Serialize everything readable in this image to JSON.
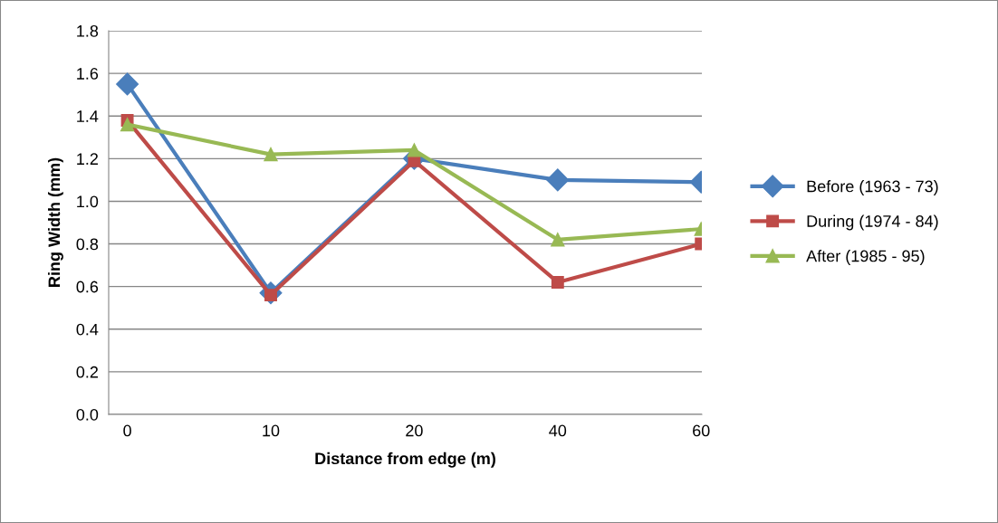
{
  "chart_data": {
    "type": "line",
    "xlabel": "Distance from edge (m)",
    "ylabel": "Ring Width (mm)",
    "categories": [
      "0",
      "10",
      "20",
      "40",
      "60"
    ],
    "series": [
      {
        "name": "Before (1963 - 73)",
        "color": "#4a7ebb",
        "marker": "diamond",
        "values": [
          1.55,
          0.57,
          1.2,
          1.1,
          1.09
        ]
      },
      {
        "name": "During (1974 - 84)",
        "color": "#be4b48",
        "marker": "square",
        "values": [
          1.38,
          0.56,
          1.19,
          0.62,
          0.8
        ]
      },
      {
        "name": "After (1985 - 95)",
        "color": "#98b954",
        "marker": "triangle",
        "values": [
          1.36,
          1.22,
          1.24,
          0.82,
          0.87
        ]
      }
    ],
    "ylim": [
      0,
      1.8
    ],
    "yticks": [
      {
        "value": 0,
        "label": "0.0"
      },
      {
        "value": 0.2,
        "label": "0.2"
      },
      {
        "value": 0.4,
        "label": "0.4"
      },
      {
        "value": 0.6,
        "label": "0.6"
      },
      {
        "value": 0.8,
        "label": "0.8"
      },
      {
        "value": 1.0,
        "label": "1.0"
      },
      {
        "value": 1.2,
        "label": "1.2"
      },
      {
        "value": 1.4,
        "label": "1.4"
      },
      {
        "value": 1.6,
        "label": "1.6"
      },
      {
        "value": 1.8,
        "label": "1.8"
      }
    ],
    "grid": "y",
    "legend": "right",
    "line_style": "solid"
  }
}
